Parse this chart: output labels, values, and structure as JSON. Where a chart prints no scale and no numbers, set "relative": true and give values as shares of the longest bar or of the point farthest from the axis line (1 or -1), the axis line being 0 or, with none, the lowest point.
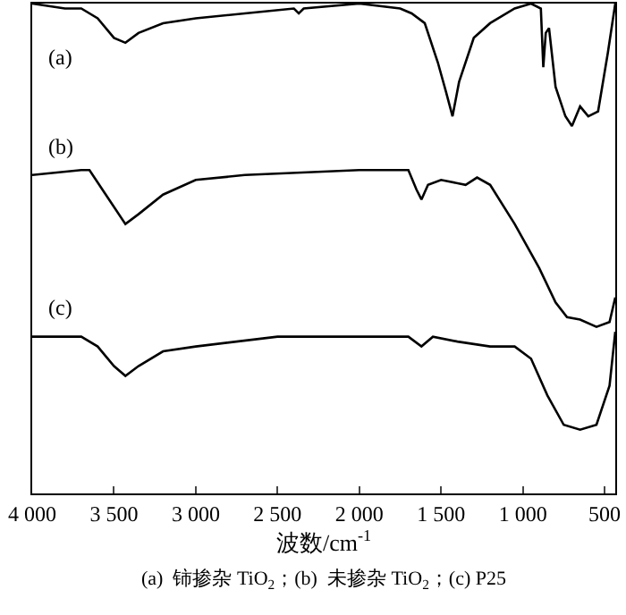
{
  "chart_data": {
    "type": "line",
    "relative": true,
    "xlabel": "波数/cm$^{-1}$",
    "annotations": [
      "(a)  铈掺杂 TiO$_{2}$；(b)  未掺杂 TiO$_{2}$；(c) P25"
    ],
    "xlim": [
      4000,
      435
    ],
    "xticks": [
      {
        "value": 4000,
        "label": "4 000"
      },
      {
        "value": 3500,
        "label": "3 500"
      },
      {
        "value": 3000,
        "label": "3 000"
      },
      {
        "value": 2500,
        "label": "2 500"
      },
      {
        "value": 2000,
        "label": "2 000"
      },
      {
        "value": 1500,
        "label": "1 500"
      },
      {
        "value": 1000,
        "label": "1 000"
      },
      {
        "value": 500,
        "label": "500"
      }
    ],
    "tick_labels": "x",
    "legend": false,
    "line_style": "solid",
    "marker": "none",
    "series": [
      {
        "name": "(a)",
        "color": "#000000",
        "x": [
          4000,
          3800,
          3700,
          3600,
          3500,
          3430,
          3350,
          3200,
          3000,
          2700,
          2400,
          2370,
          2340,
          2000,
          1750,
          1680,
          1600,
          1520,
          1470,
          1430,
          1390,
          1300,
          1200,
          1050,
          950,
          890,
          875,
          860,
          840,
          800,
          740,
          700,
          650,
          600,
          540,
          480,
          435
        ],
        "values": [
          1.0,
          0.99,
          0.99,
          0.97,
          0.93,
          0.92,
          0.94,
          0.96,
          0.97,
          0.98,
          0.99,
          0.98,
          0.99,
          1.0,
          0.99,
          0.98,
          0.96,
          0.88,
          0.82,
          0.77,
          0.84,
          0.93,
          0.96,
          0.99,
          1.0,
          0.99,
          0.87,
          0.94,
          0.95,
          0.83,
          0.77,
          0.75,
          0.79,
          0.77,
          0.78,
          0.9,
          1.0
        ]
      },
      {
        "name": "(b)",
        "color": "#000000",
        "x": [
          4000,
          3700,
          3650,
          3550,
          3430,
          3350,
          3200,
          3000,
          2700,
          2000,
          1700,
          1650,
          1620,
          1580,
          1500,
          1350,
          1280,
          1200,
          1050,
          900,
          800,
          730,
          650,
          550,
          470,
          435
        ],
        "values": [
          0.65,
          0.66,
          0.66,
          0.61,
          0.55,
          0.57,
          0.61,
          0.64,
          0.65,
          0.66,
          0.66,
          0.62,
          0.6,
          0.63,
          0.64,
          0.63,
          0.645,
          0.63,
          0.55,
          0.46,
          0.39,
          0.36,
          0.355,
          0.34,
          0.35,
          0.4
        ]
      },
      {
        "name": "(c)",
        "color": "#000000",
        "x": [
          4000,
          3700,
          3600,
          3500,
          3430,
          3350,
          3200,
          3000,
          2500,
          2000,
          1700,
          1620,
          1550,
          1400,
          1200,
          1050,
          950,
          850,
          750,
          650,
          550,
          470,
          435
        ],
        "values": [
          0.32,
          0.32,
          0.3,
          0.26,
          0.24,
          0.26,
          0.29,
          0.3,
          0.32,
          0.32,
          0.32,
          0.3,
          0.32,
          0.31,
          0.3,
          0.3,
          0.275,
          0.2,
          0.14,
          0.13,
          0.14,
          0.22,
          0.33
        ]
      }
    ]
  }
}
